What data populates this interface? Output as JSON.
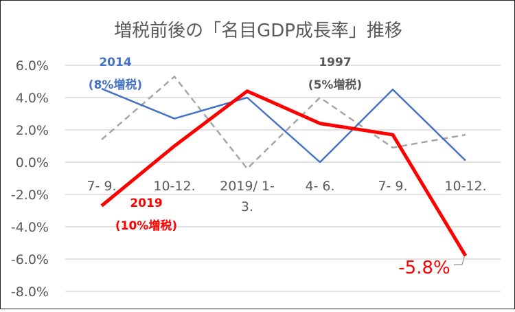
{
  "chart_data": {
    "type": "line",
    "title": "増税前後の「名目GDP成長率」推移",
    "categories": [
      [
        "7- 9."
      ],
      [
        "10-12."
      ],
      [
        "2019/ 1-",
        "3."
      ],
      [
        "4- 6."
      ],
      [
        "7- 9."
      ],
      [
        "10-12."
      ]
    ],
    "ylim": [
      -8,
      6
    ],
    "yticks": [
      6,
      4,
      2,
      0,
      -2,
      -4,
      -6,
      -8
    ],
    "ytick_labels": [
      "6.0%",
      "4.0%",
      "2.0%",
      "0.0%",
      "-2.0%",
      "-4.0%",
      "-6.0%",
      "-8.0%"
    ],
    "grid": true,
    "series": [
      {
        "name": "2014 (8%増税)",
        "label_lines": [
          "2014",
          "(8%増税)"
        ],
        "color": "#4472C4",
        "style": "solid",
        "values": [
          4.55,
          2.7,
          4.0,
          0.0,
          4.5,
          0.1
        ]
      },
      {
        "name": "1997 (5%増税)",
        "label_lines": [
          "1997",
          "(5%増税)"
        ],
        "color": "#A5A5A5",
        "style": "dashed",
        "values": [
          1.4,
          5.3,
          -0.4,
          4.0,
          0.9,
          1.7
        ]
      },
      {
        "name": "2019 (10%増税)",
        "label_lines": [
          "2019",
          "(10%増税)"
        ],
        "color": "#FF0000",
        "style": "bold",
        "values": [
          -2.7,
          1.0,
          4.4,
          2.4,
          1.7,
          -5.8
        ]
      }
    ],
    "annotations": [
      {
        "text": "-5.8%",
        "series": "2019 (10%増税)",
        "point": 5
      }
    ]
  }
}
